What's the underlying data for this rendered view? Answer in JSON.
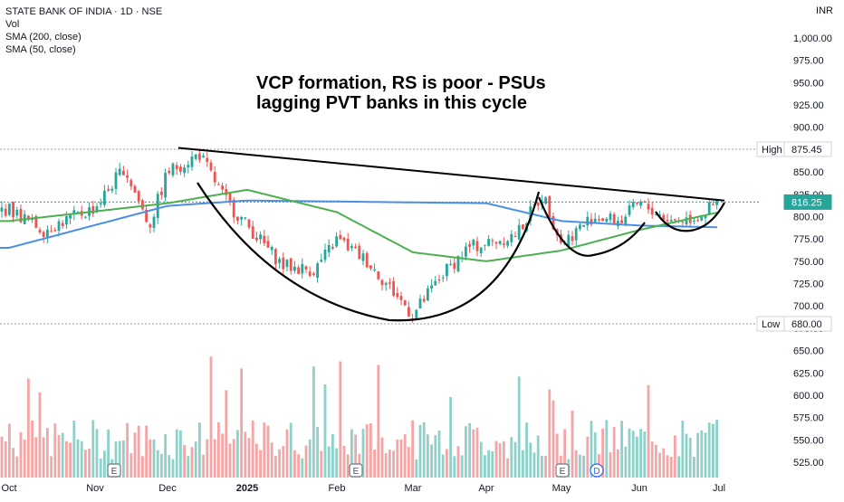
{
  "header": {
    "symbol_title": "STATE BANK OF INDIA · 1D · NSE",
    "legend_items": [
      "Vol",
      "SMA (200, close)",
      "SMA (50, close)"
    ],
    "currency": "INR"
  },
  "annotation": {
    "line1": "VCP formation, RS is poor - PSUs",
    "line2": "lagging PVT banks in this cycle"
  },
  "colors": {
    "up": "#26a69a",
    "down": "#ef5350",
    "vol_up": "#8fd0c9",
    "vol_down": "#f4a6a6",
    "sma200": "#4a90e2",
    "sma50": "#4caf50",
    "last_price_bg": "#26a69a",
    "drawing": "#000000"
  },
  "chart_data": {
    "type": "candlestick",
    "y_axis": {
      "ticks": [
        "1,000.00",
        "975.00",
        "950.00",
        "925.00",
        "900.00",
        "875.00",
        "850.00",
        "825.00",
        "800.00",
        "775.00",
        "750.00",
        "725.00",
        "700.00",
        "675.00",
        "650.00",
        "625.00",
        "600.00",
        "575.00",
        "550.00",
        "525.00"
      ],
      "range": [
        510,
        1010
      ]
    },
    "x_axis": {
      "ticks": [
        "Oct",
        "Nov",
        "Dec",
        "2025",
        "Feb",
        "Mar",
        "Apr",
        "May",
        "Jun",
        "Jul"
      ]
    },
    "high_label": {
      "text": "High",
      "value": "875.45"
    },
    "low_label": {
      "text": "Low",
      "value": "680.00"
    },
    "last_price": "816.25",
    "event_markers": [
      {
        "date": "Nov",
        "label": "E"
      },
      {
        "date": "Feb",
        "label": "E"
      },
      {
        "date": "May",
        "label": "E"
      },
      {
        "date": "May",
        "label": "D"
      }
    ],
    "price_keypoints": [
      [
        "Oct",
        808
      ],
      [
        "Oct-mid",
        785
      ],
      [
        "Nov",
        810
      ],
      [
        "Nov-mid",
        855
      ],
      [
        "Nov-late",
        790
      ],
      [
        "Dec",
        850
      ],
      [
        "Dec-mid",
        870
      ],
      [
        "Dec-late",
        815
      ],
      [
        "Jan",
        790
      ],
      [
        "Jan-mid",
        745
      ],
      [
        "Jan-late",
        740
      ],
      [
        "Feb",
        775
      ],
      [
        "Feb-mid",
        750
      ],
      [
        "Feb-late",
        715
      ],
      [
        "Mar",
        690
      ],
      [
        "Mar-mid",
        735
      ],
      [
        "Mar-late",
        765
      ],
      [
        "Apr",
        770
      ],
      [
        "Apr-mid",
        780
      ],
      [
        "Apr-late",
        825
      ],
      [
        "May",
        770
      ],
      [
        "May-mid",
        800
      ],
      [
        "May-late",
        795
      ],
      [
        "Jun",
        815
      ],
      [
        "Jun-mid",
        795
      ],
      [
        "Jun-late",
        800
      ],
      [
        "Jul",
        816
      ]
    ],
    "sma200_keypoints": [
      [
        "Oct",
        765
      ],
      [
        "Dec",
        812
      ],
      [
        "Jan",
        818
      ],
      [
        "Apr",
        815
      ],
      [
        "May",
        795
      ],
      [
        "Jun",
        790
      ],
      [
        "Jul",
        788
      ]
    ],
    "sma50_keypoints": [
      [
        "Oct",
        795
      ],
      [
        "Dec",
        815
      ],
      [
        "Jan",
        830
      ],
      [
        "Feb",
        805
      ],
      [
        "Mar",
        760
      ],
      [
        "Apr",
        750
      ],
      [
        "May",
        762
      ],
      [
        "Jun",
        785
      ],
      [
        "Jul",
        805
      ]
    ],
    "trendline": [
      [
        "Dec",
        877
      ],
      [
        "Jul",
        818
      ]
    ]
  }
}
